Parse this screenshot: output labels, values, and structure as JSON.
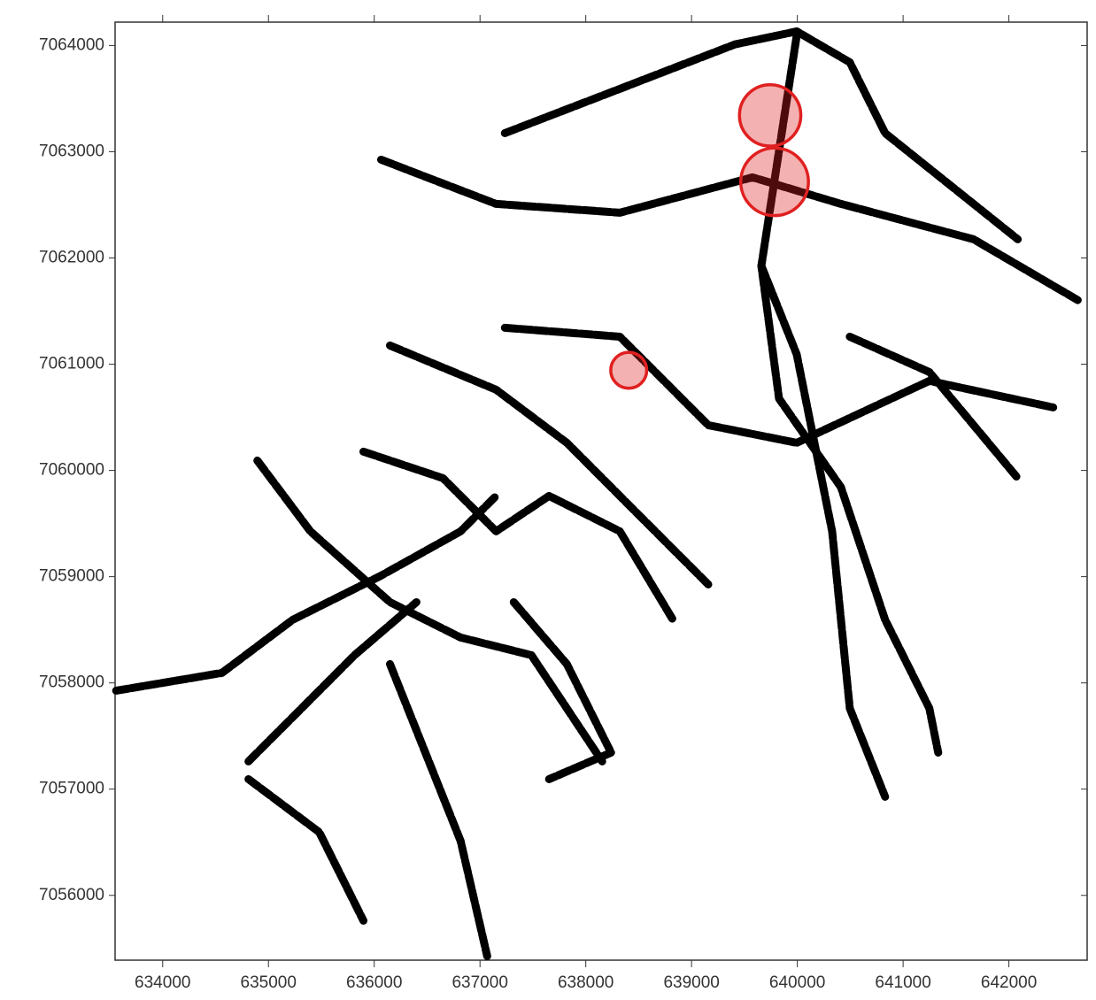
{
  "chart_data": {
    "type": "scatter",
    "xlim": [
      633550,
      642740
    ],
    "ylim": [
      7055390,
      7064220
    ],
    "xticks": [
      634000,
      635000,
      636000,
      637000,
      638000,
      639000,
      640000,
      641000,
      642000
    ],
    "yticks": [
      7056000,
      7057000,
      7058000,
      7059000,
      7060000,
      7061000,
      7062000,
      7063000,
      7064000
    ],
    "track_color": "#000000",
    "tracks": [
      {
        "x": [
          636065,
          637152,
          638322,
          639576,
          640412,
          641666,
          642669
        ],
        "y": [
          7062925,
          7062509,
          7062426,
          7062759,
          7062509,
          7062176,
          7061593
        ]
      },
      {
        "x": [
          637235,
          638322,
          639409,
          639994,
          640496,
          640830,
          642084
        ],
        "y": [
          7063175,
          7063592,
          7064010,
          7064133,
          7063842,
          7063175,
          7062176
        ]
      },
      {
        "x": [
          639994,
          639660,
          639827,
          640412,
          640830,
          641248,
          641332
        ],
        "y": [
          7064092,
          7061926,
          7060676,
          7059843,
          7058594,
          7057761,
          7057344
        ]
      },
      {
        "x": [
          639660,
          639994,
          640329,
          640496,
          640830
        ],
        "y": [
          7061926,
          7061093,
          7059427,
          7057761,
          7056928
        ]
      },
      {
        "x": [
          636149,
          637152,
          637821,
          638489,
          639158
        ],
        "y": [
          7061176,
          7060760,
          7060260,
          7059593,
          7058927
        ]
      },
      {
        "x": [
          637235,
          638322,
          638740,
          639158,
          639994,
          641248,
          642419
        ],
        "y": [
          7061343,
          7061259,
          7060843,
          7060426,
          7060260,
          7060843,
          7060593
        ]
      },
      {
        "x": [
          633560,
          634560,
          635229,
          636065,
          636817,
          637152
        ],
        "y": [
          7057927,
          7058094,
          7058594,
          7059010,
          7059427,
          7059760
        ]
      },
      {
        "x": [
          634895,
          635396,
          636149,
          636817,
          637486,
          638155
        ],
        "y": [
          7060093,
          7059427,
          7058760,
          7058427,
          7058261,
          7057261
        ]
      },
      {
        "x": [
          635898,
          636650,
          637152,
          637653,
          638322,
          638824
        ],
        "y": [
          7060177,
          7059927,
          7059427,
          7059760,
          7059427,
          7058594
        ]
      },
      {
        "x": [
          634811,
          635480,
          635898
        ],
        "y": [
          7057094,
          7056595,
          7055762
        ]
      },
      {
        "x": [
          636149,
          636483,
          636817,
          637068
        ],
        "y": [
          7058177,
          7057344,
          7056511,
          7055428
        ]
      },
      {
        "x": [
          637319,
          637821,
          638239,
          637653
        ],
        "y": [
          7058760,
          7058177,
          7057344,
          7057094
        ]
      },
      {
        "x": [
          634811,
          635313,
          635814,
          636399
        ],
        "y": [
          7057261,
          7057761,
          7058261,
          7058760
        ]
      },
      {
        "x": [
          640496,
          641248,
          642084
        ],
        "y": [
          7061259,
          7060926,
          7059927
        ]
      }
    ],
    "highlights": {
      "color": "#e02020",
      "x": [
        639743,
        639785,
        638406
      ],
      "y": [
        7063342,
        7062717,
        7060943
      ],
      "radius": [
        290,
        320,
        170
      ]
    }
  }
}
